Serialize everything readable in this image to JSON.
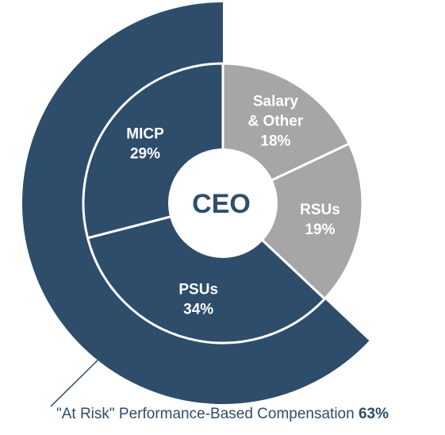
{
  "chart_data": {
    "type": "pie",
    "center_label": "CEO",
    "slices": [
      {
        "label_lines": [
          "Salary",
          "& Other"
        ],
        "value": 18,
        "value_text": "18%",
        "color": "#a6a6a6"
      },
      {
        "label_lines": [
          "RSUs"
        ],
        "value": 19,
        "value_text": "19%",
        "color": "#a6a6a6"
      },
      {
        "label_lines": [
          "PSUs"
        ],
        "value": 34,
        "value_text": "34%",
        "color": "#2e4d6b"
      },
      {
        "label_lines": [
          "MICP"
        ],
        "value": 29,
        "value_text": "29%",
        "color": "#2e4d6b"
      }
    ],
    "outer_ring": {
      "value": 63,
      "color": "#2e4d6b",
      "caption_text": "\"At Risk\" Performance-Based Compensation",
      "caption_value": "63%"
    }
  }
}
